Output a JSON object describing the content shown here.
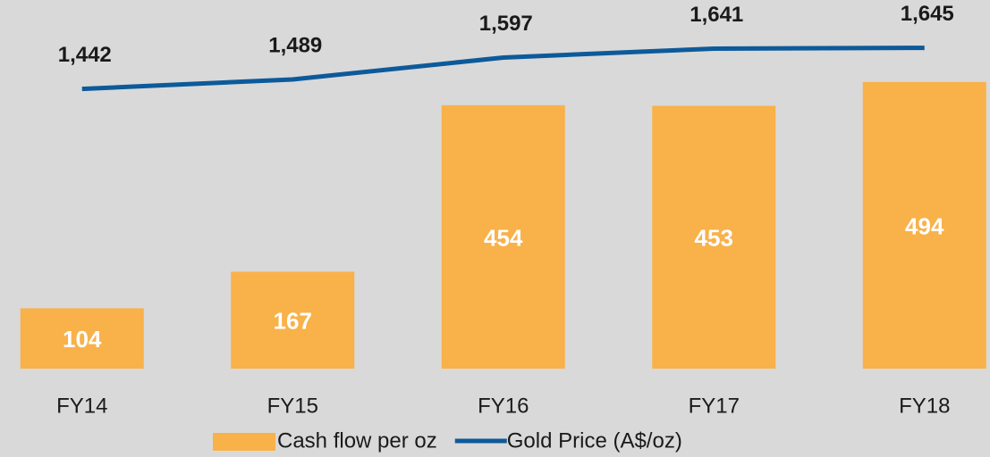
{
  "chart_data": {
    "type": "bar",
    "categories": [
      "FY14",
      "FY15",
      "FY16",
      "FY17",
      "FY18"
    ],
    "series": [
      {
        "name": "Cash flow per oz",
        "type": "bar",
        "color": "#f9b14a",
        "values": [
          104,
          167,
          454,
          453,
          494
        ]
      },
      {
        "name": "Gold Price (A$/oz)",
        "type": "line",
        "axis": "y2",
        "color": "#0d5a9a",
        "values": [
          1442,
          1489,
          1597,
          1641,
          1645
        ],
        "value_labels": [
          "1,442",
          "1,489",
          "1,597",
          "1,641",
          "1,645"
        ]
      }
    ],
    "ylim": [
      0,
      600
    ],
    "y2lim": [
      60,
      1780
    ],
    "legend": "bottom"
  }
}
